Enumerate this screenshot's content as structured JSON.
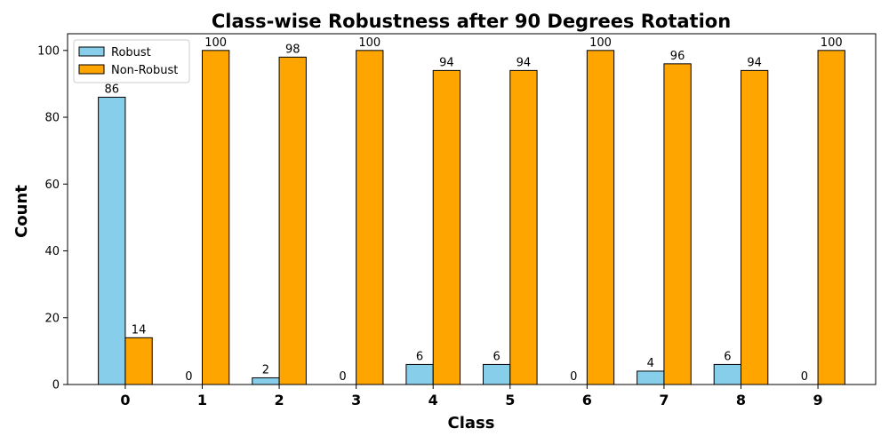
{
  "chart_data": {
    "type": "bar",
    "title": "Class-wise Robustness after 90 Degrees Rotation",
    "xlabel": "Class",
    "ylabel": "Count",
    "categories": [
      "0",
      "1",
      "2",
      "3",
      "4",
      "5",
      "6",
      "7",
      "8",
      "9"
    ],
    "series": [
      {
        "name": "Robust",
        "color": "#87ceeb",
        "values": [
          86,
          0,
          2,
          0,
          6,
          6,
          0,
          4,
          6,
          0
        ]
      },
      {
        "name": "Non-Robust",
        "color": "#ffa500",
        "values": [
          14,
          100,
          98,
          100,
          94,
          94,
          100,
          96,
          94,
          100
        ]
      }
    ],
    "ylim": [
      0,
      105
    ],
    "yticks": [
      0,
      20,
      40,
      60,
      80,
      100
    ],
    "grid": false,
    "legend_position": "top-left",
    "edge_color": "#000000"
  }
}
